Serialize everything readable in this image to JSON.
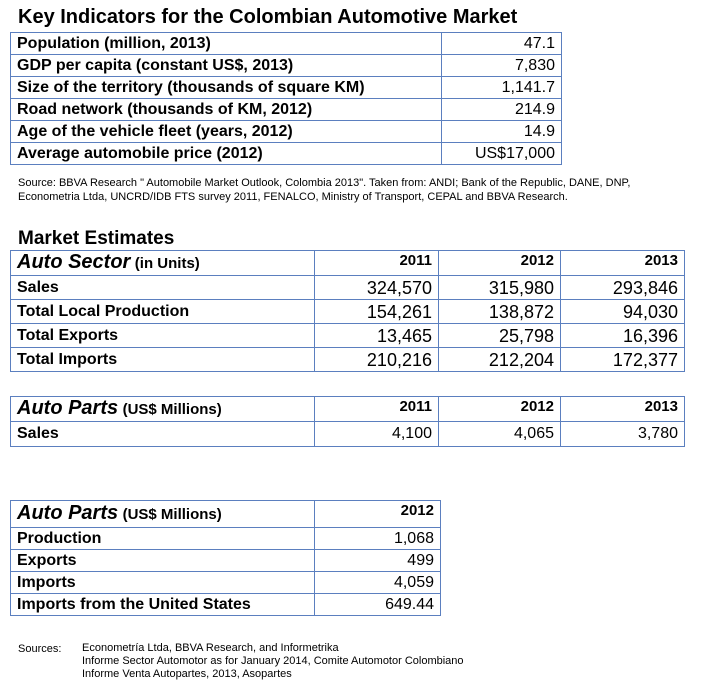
{
  "indicators": {
    "title": "Key Indicators for the Colombian Automotive Market",
    "rows": [
      {
        "label": "Population (million, 2013)",
        "value": "47.1"
      },
      {
        "label": "GDP per capita (constant US$, 2013)",
        "value": "7,830"
      },
      {
        "label": "Size of the territory (thousands of square KM)",
        "value": "1,141.7"
      },
      {
        "label": "Road network (thousands of KM, 2012)",
        "value": "214.9"
      },
      {
        "label": "Age of the vehicle fleet (years, 2012)",
        "value": "14.9"
      },
      {
        "label": "Average automobile price (2012)",
        "value": "US$17,000"
      }
    ],
    "source_line1": "Source:  BBVA Research \" Automobile Market Outlook, Colombia 2013\". Taken from: ANDI; Bank of the Republic, DANE, DNP,",
    "source_line2": "Econometria Ltda, UNCRD/IDB FTS survey 2011, FENALCO, Ministry of Transport, CEPAL and BBVA Research."
  },
  "market": {
    "title": "Market Estimates",
    "auto_sector": {
      "name": "Auto Sector",
      "unit": "(in Units)",
      "years": [
        "2011",
        "2012",
        "2013"
      ],
      "rows": [
        {
          "label": "Sales",
          "values": [
            "324,570",
            "315,980",
            "293,846"
          ]
        },
        {
          "label": "Total Local Production",
          "values": [
            "154,261",
            "138,872",
            "94,030"
          ]
        },
        {
          "label": "Total Exports",
          "values": [
            "13,465",
            "25,798",
            "16,396"
          ]
        },
        {
          "label": "Total Imports",
          "values": [
            "210,216",
            "212,204",
            "172,377"
          ]
        }
      ]
    },
    "auto_parts_sales": {
      "name": "Auto Parts",
      "unit": "(US$ Millions)",
      "years": [
        "2011",
        "2012",
        "2013"
      ],
      "rows": [
        {
          "label": "Sales",
          "values": [
            "4,100",
            "4,065",
            "3,780"
          ]
        }
      ]
    },
    "auto_parts_trade": {
      "name": "Auto Parts",
      "unit": "(US$ Millions)",
      "year": "2012",
      "rows": [
        {
          "label": "Production",
          "value": "1,068"
        },
        {
          "label": "Exports",
          "value": "499"
        },
        {
          "label": "Imports",
          "value": "4,059"
        },
        {
          "label": "Imports from the United States",
          "value": "649.44"
        }
      ]
    }
  },
  "sources": {
    "label": "Sources:",
    "lines": [
      "Econometría Ltda, BBVA Research, and Informetrika",
      "Informe Sector Automotor as for January 2014, Comite Automotor Colombiano",
      "Informe Venta Autopartes, 2013, Asopartes"
    ]
  }
}
